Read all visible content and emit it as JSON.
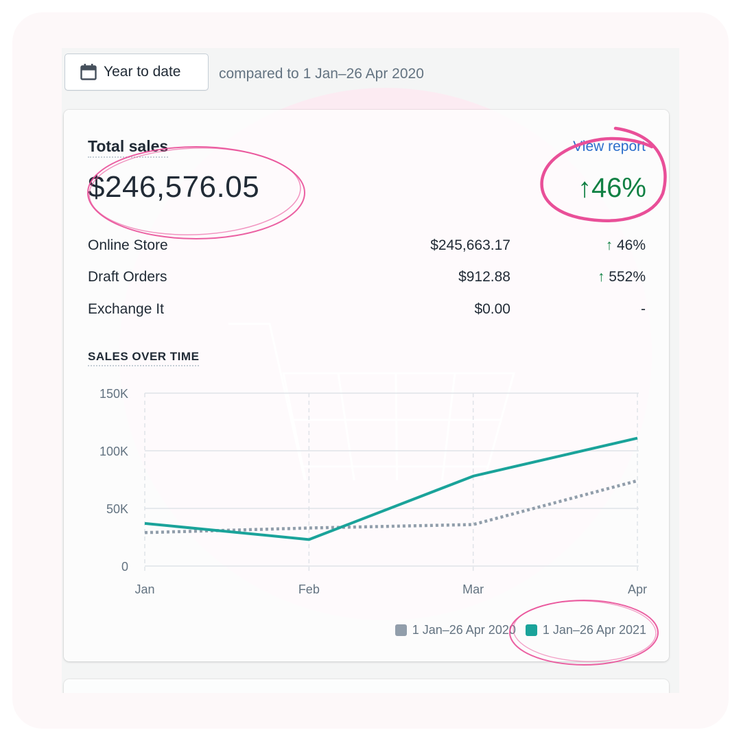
{
  "toolbar": {
    "date_range_label": "Year to date",
    "compare_text": "compared to 1 Jan–26 Apr 2020"
  },
  "sales_card": {
    "title": "Total sales",
    "view_report_label": "View report",
    "total_value": "$246,576.05",
    "total_change": {
      "arrow": "↑",
      "value": "46%"
    },
    "breakdown": [
      {
        "name": "Online Store",
        "amount": "$245,663.17",
        "arrow": "↑",
        "change": "46%"
      },
      {
        "name": "Draft Orders",
        "amount": "$912.88",
        "arrow": "↑",
        "change": "552%"
      },
      {
        "name": "Exchange It",
        "amount": "$0.00",
        "arrow": "",
        "change": "-"
      }
    ],
    "chart_section_title": "SALES OVER TIME"
  },
  "colors": {
    "current": "#1aa39a",
    "previous": "#919eab",
    "positive": "#108043",
    "link": "#2c6ecb",
    "annotation": "#e94f98"
  },
  "icons": {
    "date_button": "calendar-icon",
    "background": "shopping-cart-icon"
  },
  "chart_data": {
    "type": "line",
    "x": [
      "Jan",
      "Feb",
      "Mar",
      "Apr"
    ],
    "ylim": [
      0,
      150000
    ],
    "yticks": [
      0,
      50000,
      100000,
      150000
    ],
    "ytick_labels": [
      "0",
      "50K",
      "100K",
      "150K"
    ],
    "series": [
      {
        "name": "1 Jan–26 Apr 2020",
        "values": [
          29000,
          33000,
          36000,
          74000
        ],
        "style": "dotted",
        "color": "#919eab"
      },
      {
        "name": "1 Jan–26 Apr 2021",
        "values": [
          37000,
          23000,
          78000,
          111000
        ],
        "style": "solid",
        "color": "#1aa39a"
      }
    ],
    "grid": true,
    "legend_position": "bottom-right"
  }
}
